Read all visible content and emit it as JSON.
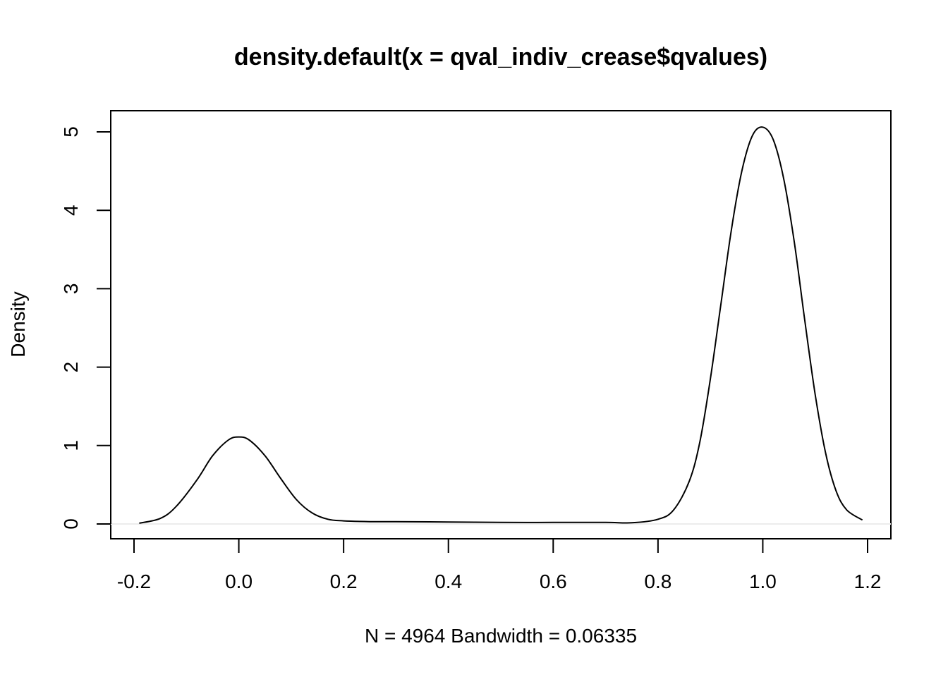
{
  "chart_data": {
    "type": "line",
    "title": "density.default(x = qval_indiv_crease$qvalues)",
    "xlabel": "N = 4964   Bandwidth = 0.06335",
    "ylabel": "Density",
    "xlim": [
      -0.2,
      1.2
    ],
    "ylim": [
      0,
      5
    ],
    "x_ticks": [
      "-0.2",
      "0.0",
      "0.2",
      "0.4",
      "0.6",
      "0.8",
      "1.0",
      "1.2"
    ],
    "y_ticks": [
      "0",
      "1",
      "2",
      "3",
      "4",
      "5"
    ],
    "grid": false,
    "zero_line": true,
    "series": [
      {
        "x": [
          -0.19,
          -0.15,
          -0.12,
          -0.08,
          -0.05,
          -0.02,
          0.0,
          0.02,
          0.05,
          0.08,
          0.11,
          0.14,
          0.17,
          0.2,
          0.25,
          0.3,
          0.4,
          0.5,
          0.6,
          0.7,
          0.75,
          0.8,
          0.83,
          0.86,
          0.88,
          0.9,
          0.92,
          0.94,
          0.96,
          0.98,
          1.0,
          1.02,
          1.04,
          1.06,
          1.08,
          1.1,
          1.12,
          1.14,
          1.16,
          1.19
        ],
        "y": [
          0.01,
          0.07,
          0.22,
          0.56,
          0.87,
          1.07,
          1.11,
          1.07,
          0.87,
          0.58,
          0.31,
          0.14,
          0.06,
          0.04,
          0.03,
          0.03,
          0.025,
          0.02,
          0.02,
          0.02,
          0.015,
          0.06,
          0.18,
          0.55,
          1.05,
          1.85,
          2.8,
          3.75,
          4.5,
          4.95,
          5.06,
          4.9,
          4.4,
          3.6,
          2.6,
          1.65,
          0.9,
          0.42,
          0.18,
          0.05
        ]
      }
    ]
  }
}
